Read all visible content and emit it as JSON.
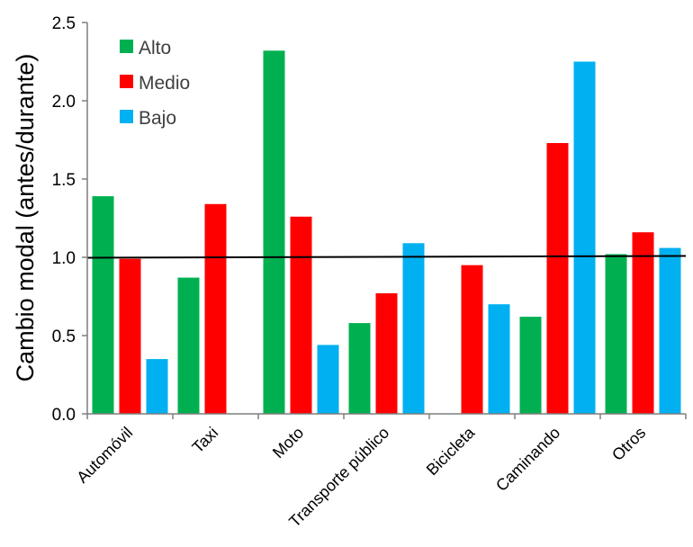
{
  "chart_data": {
    "type": "bar",
    "title": "",
    "xlabel": "",
    "ylabel": "Cambio modal (antes/durante)",
    "ylim": [
      0,
      2.5
    ],
    "yticks": [
      "0.0",
      "0.5",
      "1.0",
      "1.5",
      "2.0",
      "2.5"
    ],
    "ytick_values": [
      0,
      0.5,
      1.0,
      1.5,
      2.0,
      2.5
    ],
    "reference_line": 1.0,
    "legend_position": "top-left",
    "categories": [
      "Automóvil",
      "Taxi",
      "Moto",
      "Transporte público",
      "Bicicleta",
      "Caminando",
      "Otros"
    ],
    "series": [
      {
        "name": "Alto",
        "color": "#00b050",
        "values": [
          1.39,
          0.87,
          2.32,
          0.58,
          null,
          0.62,
          1.02
        ]
      },
      {
        "name": "Medio",
        "color": "#ff0000",
        "values": [
          0.99,
          1.34,
          1.26,
          0.77,
          0.95,
          1.73,
          1.16
        ]
      },
      {
        "name": "Bajo",
        "color": "#00b0f0",
        "values": [
          0.35,
          null,
          0.44,
          1.09,
          0.7,
          2.25,
          1.06
        ]
      }
    ]
  }
}
